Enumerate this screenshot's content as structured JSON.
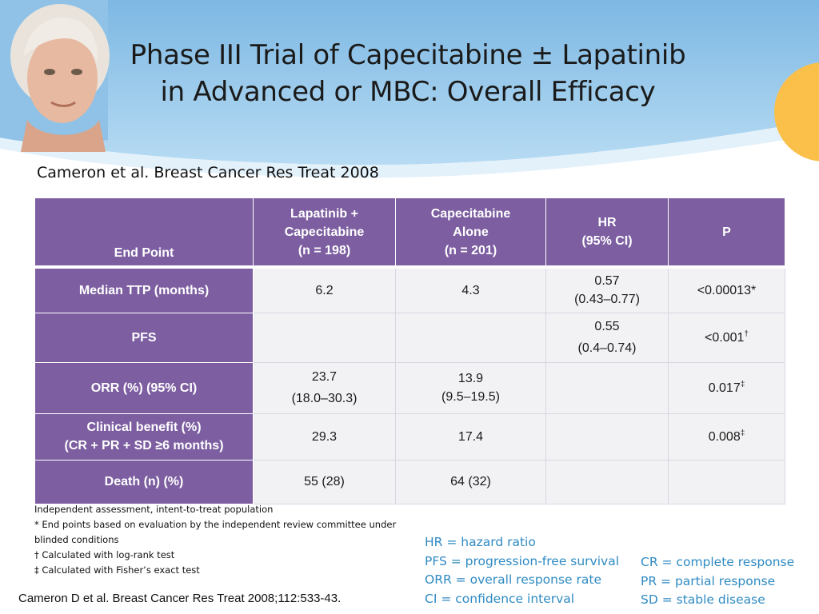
{
  "title": {
    "line1": "Phase III Trial of Capecitabine ± Lapatinib",
    "line2": "in Advanced or MBC: Overall Efficacy"
  },
  "citation_top": "Cameron et al. Breast Cancer Res Treat 2008",
  "table": {
    "headers": {
      "endpoint": "End Point",
      "col1": [
        "Lapatinib +",
        "Capecitabine",
        "(n = 198)"
      ],
      "col2": [
        "Capecitabine",
        "Alone",
        "(n = 201)"
      ],
      "col3": [
        "HR",
        "(95% CI)"
      ],
      "col4": "P"
    },
    "rows": [
      {
        "label": [
          "Median TTP (months)"
        ],
        "lap": [
          "6.2"
        ],
        "cap": [
          "4.3"
        ],
        "hr": [
          "0.57",
          "(0.43–0.77)"
        ],
        "p": "<0.00013*",
        "p_sup": ""
      },
      {
        "label": [
          "PFS"
        ],
        "lap": [
          ""
        ],
        "cap": [
          ""
        ],
        "hr": [
          "0.55",
          "(0.4–0.74)"
        ],
        "p": "<0.001",
        "p_sup": "†"
      },
      {
        "label": [
          "ORR (%) (95% CI)"
        ],
        "lap": [
          "23.7",
          "(18.0–30.3)"
        ],
        "cap": [
          "13.9",
          "(9.5–19.5)"
        ],
        "hr": [
          ""
        ],
        "p": "0.017",
        "p_sup": "‡"
      },
      {
        "label": [
          "Clinical benefit (%)",
          "(CR + PR + SD ≥6 months)"
        ],
        "lap": [
          "29.3"
        ],
        "cap": [
          "17.4"
        ],
        "hr": [
          ""
        ],
        "p": "0.008",
        "p_sup": "‡"
      },
      {
        "label": [
          "Death (n) (%)"
        ],
        "lap": [
          "55 (28)"
        ],
        "cap": [
          "64 (32)"
        ],
        "hr": [
          ""
        ],
        "p": "",
        "p_sup": ""
      }
    ]
  },
  "notes": [
    "Independent assessment, intent-to-treat population",
    "* End points based on evaluation by the independent review committee under",
    "blinded conditions",
    "† Calculated with log-rank test",
    "‡ Calculated with Fisher’s exact test"
  ],
  "citation_bottom": "Cameron D et al. Breast Cancer Res Treat 2008;112:533-43.",
  "abbreviations_left": [
    "HR = hazard ratio",
    "PFS = progression-free survival",
    "ORR = overall response rate",
    "CI = confidence interval"
  ],
  "abbreviations_right": [
    "CR = complete response",
    "PR = partial response",
    "SD = stable disease"
  ],
  "colors": {
    "header_purple": "#7d5fa1",
    "cell_bg": "#f2f2f4",
    "abbreviation_blue": "#2f8bc3",
    "banner_blue": "#9dc9ea",
    "accent_orange": "#fbc04a"
  }
}
